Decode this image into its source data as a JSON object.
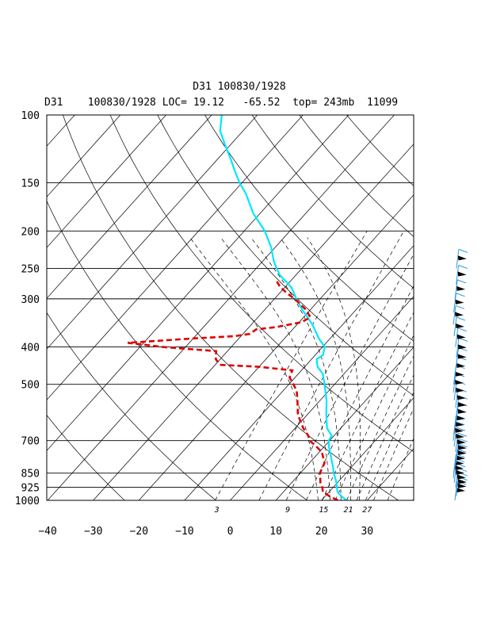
{
  "header": {
    "title": "D31 100830/1928",
    "subtitle": "D31    100830/1928 LOC= 19.12   -65.52  top= 243mb  11099"
  },
  "chart_data": {
    "type": "line",
    "title": "D31 100830/1928",
    "y_scale": "log-pressure",
    "pressure_levels_mb": [
      100,
      150,
      200,
      250,
      300,
      400,
      500,
      700,
      850,
      925,
      1000
    ],
    "y_tick_labels": [
      "100",
      "150",
      "200",
      "250",
      "300",
      "400",
      "500",
      "700",
      "850",
      "925",
      "1000"
    ],
    "x_ticks": [
      -40,
      -30,
      -20,
      -10,
      0,
      10,
      20,
      30
    ],
    "x_tick_labels": [
      "−40",
      "−30",
      "−20",
      "−10",
      "0",
      "10",
      "20",
      "30"
    ],
    "xlim_at_1000mb": [
      -40,
      40
    ],
    "mixing_ratio_labels": [
      {
        "label": "3",
        "value": 3
      },
      {
        "label": "9",
        "value": 9
      },
      {
        "label": "15",
        "value": 15
      },
      {
        "label": "21",
        "value": 21
      },
      {
        "label": "27",
        "value": 27
      }
    ],
    "isotherms_c": [
      -110,
      -100,
      -90,
      -80,
      -70,
      -60,
      -50,
      -40,
      -30,
      -20,
      -10,
      0,
      10,
      20,
      30,
      40
    ],
    "dry_adiabats_theta_k": [
      250,
      270,
      290,
      310,
      330,
      350,
      370,
      390,
      410,
      430
    ],
    "moist_adiabats_thetae_k": [
      330,
      340,
      350,
      360,
      370
    ],
    "series": [
      {
        "id": "temperature",
        "color": "#00e6ff",
        "points": [
          [
            1000,
            25.5
          ],
          [
            975,
            23.5
          ],
          [
            950,
            21.8
          ],
          [
            925,
            20.8
          ],
          [
            900,
            19.8
          ],
          [
            875,
            18.6
          ],
          [
            850,
            17.3
          ],
          [
            825,
            16.2
          ],
          [
            800,
            15.0
          ],
          [
            775,
            13.7
          ],
          [
            750,
            12.4
          ],
          [
            725,
            11.0
          ],
          [
            700,
            9.8
          ],
          [
            680,
            9.5
          ],
          [
            650,
            7.0
          ],
          [
            600,
            4.2
          ],
          [
            550,
            1.4
          ],
          [
            500,
            -2.2
          ],
          [
            470,
            -4.6
          ],
          [
            450,
            -7.2
          ],
          [
            430,
            -8.9
          ],
          [
            420,
            -8.3
          ],
          [
            400,
            -9.5
          ],
          [
            380,
            -12.5
          ],
          [
            350,
            -16.6
          ],
          [
            320,
            -21.8
          ],
          [
            300,
            -25.2
          ],
          [
            280,
            -28.6
          ],
          [
            260,
            -33.6
          ],
          [
            240,
            -37.5
          ],
          [
            220,
            -41.0
          ],
          [
            200,
            -45.5
          ],
          [
            180,
            -51.5
          ],
          [
            160,
            -57.0
          ],
          [
            150,
            -60.5
          ],
          [
            140,
            -63.8
          ],
          [
            130,
            -67.2
          ],
          [
            120,
            -71.0
          ],
          [
            110,
            -75.0
          ],
          [
            100,
            -77.8
          ]
        ]
      },
      {
        "id": "dewpoint",
        "color": "#dd0000",
        "points": [
          [
            1000,
            23.6
          ],
          [
            975,
            20.9
          ],
          [
            950,
            18.6
          ],
          [
            925,
            17.6
          ],
          [
            900,
            16.3
          ],
          [
            850,
            14.3
          ],
          [
            800,
            13.3
          ],
          [
            750,
            10.6
          ],
          [
            720,
            7.8
          ],
          [
            700,
            5.6
          ],
          [
            680,
            4.4
          ],
          [
            650,
            1.8
          ],
          [
            600,
            -2.0
          ],
          [
            550,
            -5.0
          ],
          [
            520,
            -7.0
          ],
          [
            500,
            -9.0
          ],
          [
            480,
            -11.2
          ],
          [
            460,
            -12.0
          ],
          [
            450,
            -20.2
          ],
          [
            445,
            -29.0
          ],
          [
            430,
            -31.0
          ],
          [
            410,
            -32.5
          ],
          [
            400,
            -45.0
          ],
          [
            390,
            -53.5
          ],
          [
            385,
            -46.5
          ],
          [
            380,
            -40.0
          ],
          [
            375,
            -31.5
          ],
          [
            370,
            -28.5
          ],
          [
            360,
            -28.0
          ],
          [
            355,
            -24.0
          ],
          [
            345,
            -19.5
          ],
          [
            335,
            -18.5
          ],
          [
            320,
            -21.0
          ],
          [
            300,
            -25.6
          ],
          [
            290,
            -28.4
          ],
          [
            280,
            -31.0
          ],
          [
            270,
            -33.0
          ]
        ]
      }
    ],
    "wind_barbs_pressure_mb": [
      1000,
      975,
      950,
      925,
      900,
      875,
      850,
      825,
      800,
      775,
      750,
      725,
      700,
      675,
      650,
      625,
      600,
      575,
      550,
      525,
      500,
      475,
      450,
      425,
      400,
      375,
      350,
      325,
      300,
      275,
      250
    ]
  }
}
